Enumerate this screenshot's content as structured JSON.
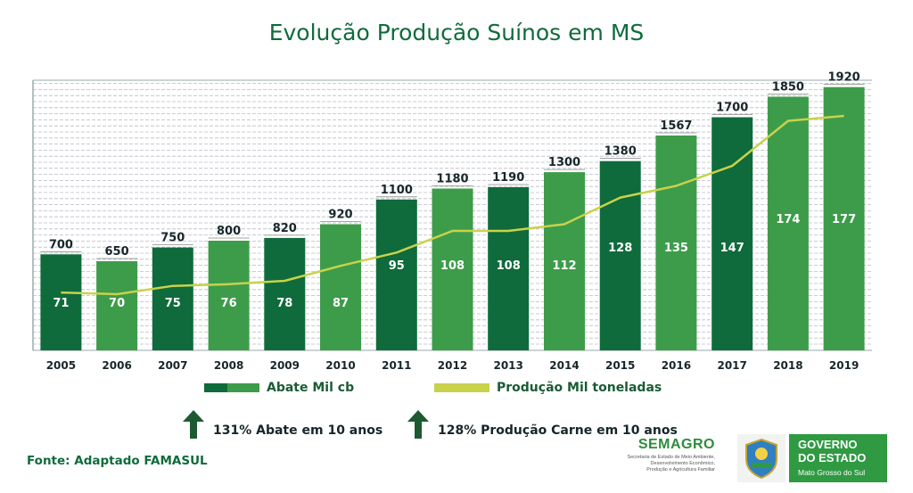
{
  "title": "Evolução Produção Suínos em MS",
  "chart_data": {
    "type": "bar",
    "categories": [
      "2005",
      "2006",
      "2007",
      "2008",
      "2009",
      "2010",
      "2011",
      "2012",
      "2013",
      "2014",
      "2015",
      "2016",
      "2017",
      "2018",
      "2019"
    ],
    "series": [
      {
        "name": "Abate Mil cb",
        "type": "bar",
        "values": [
          700,
          650,
          750,
          800,
          820,
          920,
          1100,
          1180,
          1190,
          1300,
          1380,
          1567,
          1700,
          1850,
          1920
        ]
      },
      {
        "name": "Produção Mil toneladas",
        "type": "line",
        "values": [
          71,
          70,
          75,
          76,
          78,
          87,
          95,
          108,
          108,
          112,
          128,
          135,
          147,
          174,
          177
        ]
      }
    ],
    "bar_shades": [
      "dark",
      "light",
      "dark",
      "light",
      "dark",
      "light",
      "dark",
      "light",
      "dark",
      "light",
      "dark",
      "light",
      "dark",
      "light",
      "light"
    ],
    "ylim": [
      0,
      1970
    ],
    "grid": true,
    "legend_position": "bottom",
    "colors": {
      "dark_green": "#0f6b3b",
      "light_green": "#3d9c4a",
      "line": "#c8d24a",
      "text": "#17262a"
    }
  },
  "legend": {
    "abate_label": "Abate Mil cb",
    "producao_label": "Produção Mil toneladas"
  },
  "notes": {
    "abate": "131% Abate em 10 anos",
    "producao": "128% Produção Carne em 10 anos"
  },
  "source": "Fonte: Adaptado FAMASUL",
  "logos": {
    "semagro_name": "SEMAGRO",
    "semagro_desc_1": "Secretaria de Estado de Meio Ambiente,",
    "semagro_desc_2": "Desenvolvimento Econômico,",
    "semagro_desc_3": "Produção e Agricultura Familiar",
    "gov_1": "GOVERNO",
    "gov_2": "DO ESTADO",
    "gov_3": "Mato Grosso do Sul"
  }
}
